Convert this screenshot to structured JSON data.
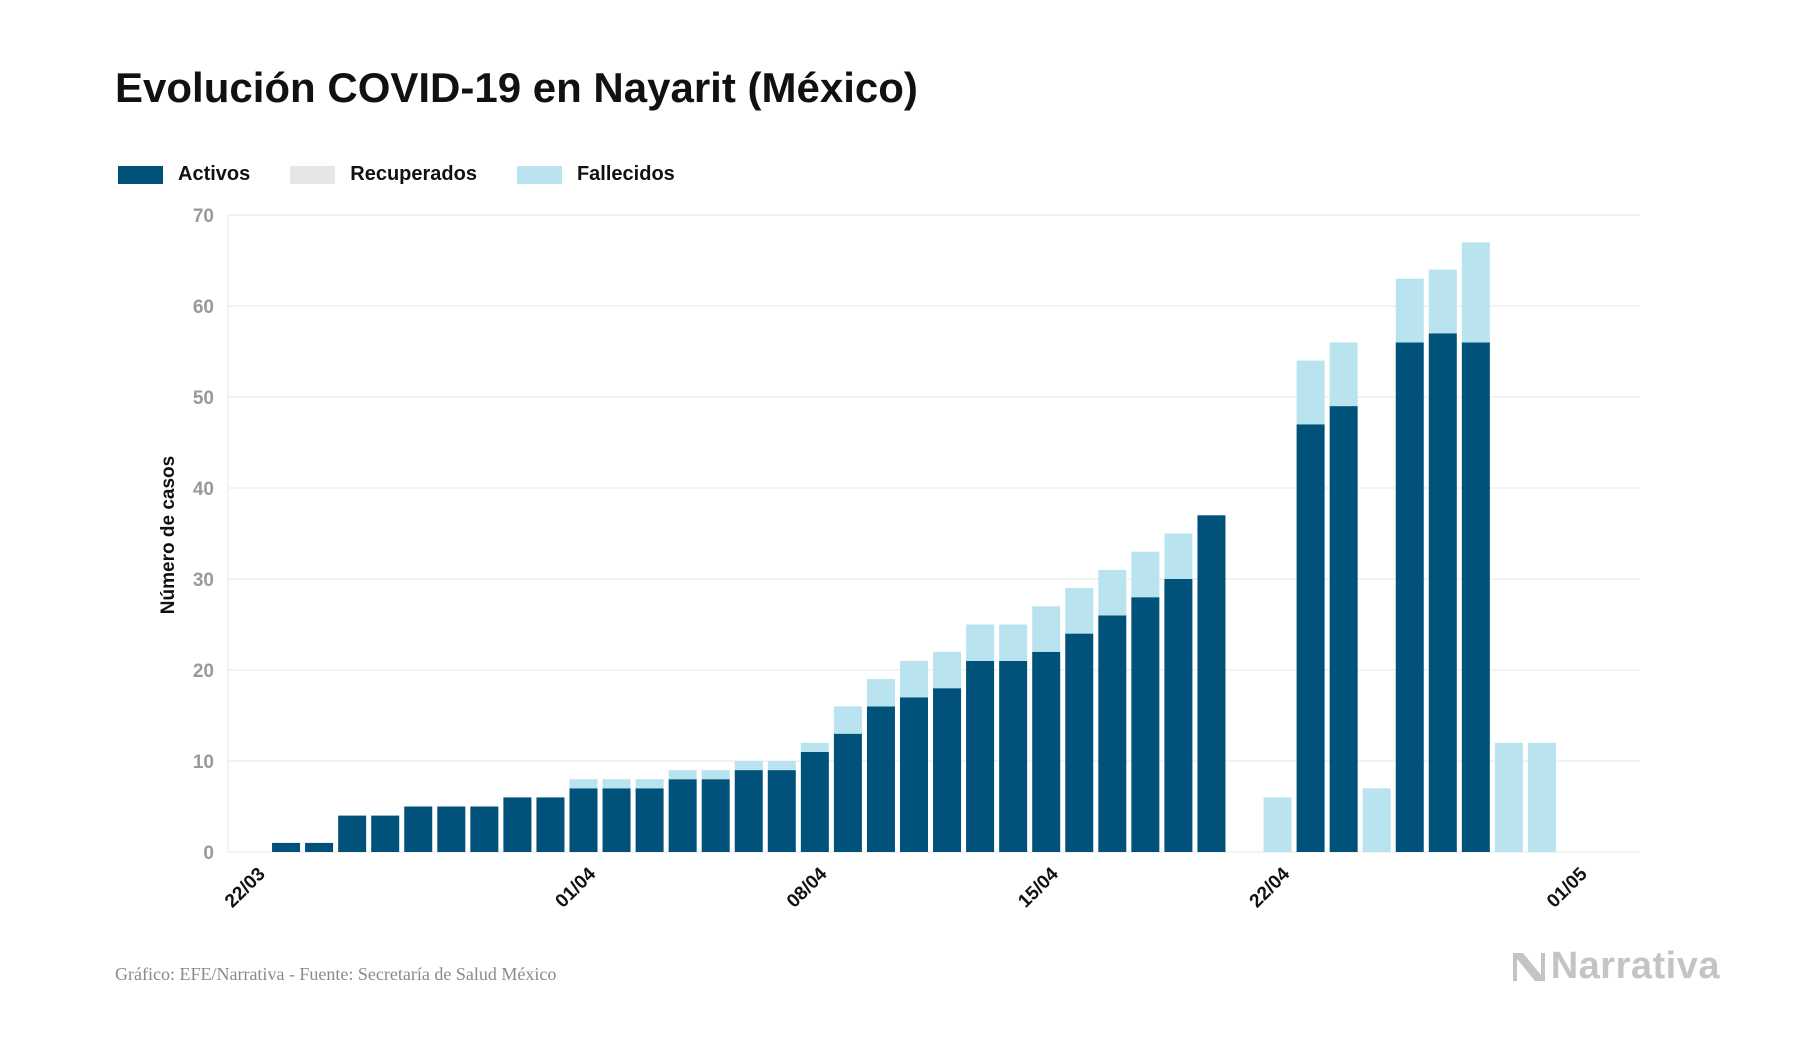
{
  "title": "Evolución COVID-19 en Nayarit (México)",
  "legend": {
    "activos": "Activos",
    "recuperados": "Recuperados",
    "fallecidos": "Fallecidos"
  },
  "colors": {
    "activos": "#00527a",
    "recuperados": "#e6e6e6",
    "fallecidos": "#b9e3ef",
    "grid": "#e7e7e7",
    "tick_text": "#999999",
    "axis_text": "#111111"
  },
  "footer": {
    "source": "Gráfico: EFE/Narrativa - Fuente: Secretaría de Salud México",
    "logo_text": "Narrativa"
  },
  "chart_data": {
    "type": "bar",
    "stacked": true,
    "ylabel": "Número de casos",
    "xlabel": "",
    "ylim": [
      0,
      70
    ],
    "yticks": [
      0,
      10,
      20,
      30,
      40,
      50,
      60,
      70
    ],
    "xtick_labels": [
      "22/03",
      "01/04",
      "08/04",
      "15/04",
      "22/04",
      "01/05"
    ],
    "grid": true,
    "legend_position": "top-left",
    "categories": [
      "22/03",
      "23/03",
      "24/03",
      "25/03",
      "26/03",
      "27/03",
      "28/03",
      "29/03",
      "30/03",
      "31/03",
      "01/04",
      "02/04",
      "03/04",
      "04/04",
      "05/04",
      "06/04",
      "07/04",
      "08/04",
      "09/04",
      "10/04",
      "11/04",
      "12/04",
      "13/04",
      "14/04",
      "15/04",
      "16/04",
      "17/04",
      "18/04",
      "19/04",
      "20/04",
      "21/04",
      "22/04",
      "23/04",
      "24/04",
      "25/04",
      "26/04",
      "27/04",
      "28/04",
      "29/04",
      "30/04",
      "01/05"
    ],
    "series": [
      {
        "name": "Activos",
        "values": [
          0,
          1,
          1,
          4,
          4,
          5,
          5,
          5,
          6,
          6,
          7,
          7,
          7,
          8,
          8,
          9,
          9,
          11,
          13,
          16,
          17,
          18,
          21,
          21,
          22,
          24,
          26,
          28,
          30,
          37,
          0,
          0,
          47,
          49,
          0,
          56,
          57,
          56,
          0,
          0,
          0
        ]
      },
      {
        "name": "Recuperados",
        "values": [
          0,
          0,
          0,
          0,
          0,
          0,
          0,
          0,
          0,
          0,
          0,
          0,
          0,
          0,
          0,
          0,
          0,
          0,
          0,
          0,
          0,
          0,
          0,
          0,
          0,
          0,
          0,
          0,
          0,
          0,
          0,
          0,
          0,
          0,
          0,
          0,
          0,
          0,
          0,
          0,
          0
        ]
      },
      {
        "name": "Fallecidos",
        "values": [
          0,
          0,
          0,
          0,
          0,
          0,
          0,
          0,
          0,
          0,
          1,
          1,
          1,
          1,
          1,
          1,
          1,
          1,
          3,
          3,
          4,
          4,
          4,
          4,
          5,
          5,
          5,
          5,
          5,
          0,
          0,
          6,
          7,
          7,
          7,
          7,
          7,
          11,
          12,
          12,
          0
        ]
      }
    ]
  }
}
